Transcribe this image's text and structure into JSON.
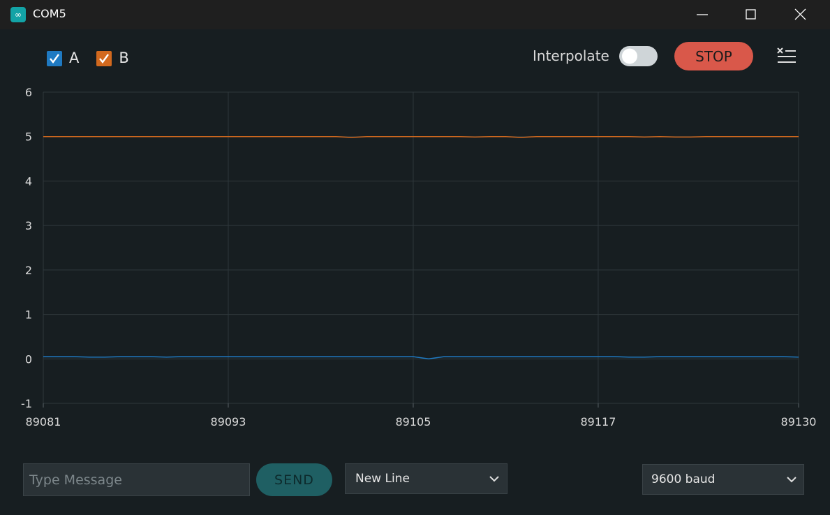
{
  "window": {
    "title": "COM5"
  },
  "toolbar": {
    "interpolate_label": "Interpolate",
    "stop_button": "STOP"
  },
  "chart_data": {
    "type": "line",
    "x": [
      89081,
      89082,
      89083,
      89084,
      89085,
      89086,
      89087,
      89088,
      89089,
      89090,
      89091,
      89092,
      89093,
      89094,
      89095,
      89096,
      89097,
      89098,
      89099,
      89100,
      89101,
      89102,
      89103,
      89104,
      89105,
      89106,
      89107,
      89108,
      89109,
      89110,
      89111,
      89112,
      89113,
      89114,
      89115,
      89116,
      89117,
      89118,
      89119,
      89120,
      89121,
      89122,
      89123,
      89124,
      89125,
      89126,
      89127,
      89128,
      89129,
      89130
    ],
    "series": [
      {
        "name": "A",
        "color": "#1f7ac2",
        "values": [
          0.05,
          0.05,
          0.05,
          0.04,
          0.04,
          0.05,
          0.05,
          0.05,
          0.04,
          0.05,
          0.05,
          0.05,
          0.05,
          0.05,
          0.05,
          0.05,
          0.05,
          0.05,
          0.05,
          0.05,
          0.05,
          0.05,
          0.05,
          0.05,
          0.05,
          0.0,
          0.05,
          0.05,
          0.05,
          0.05,
          0.05,
          0.05,
          0.05,
          0.05,
          0.05,
          0.05,
          0.05,
          0.05,
          0.04,
          0.04,
          0.05,
          0.05,
          0.05,
          0.05,
          0.05,
          0.05,
          0.05,
          0.05,
          0.05,
          0.04
        ]
      },
      {
        "name": "B",
        "color": "#d2691e",
        "values": [
          5.0,
          5.0,
          5.0,
          5.0,
          5.0,
          5.0,
          5.0,
          5.0,
          5.0,
          5.0,
          5.0,
          5.0,
          5.0,
          5.0,
          5.0,
          5.0,
          5.0,
          5.0,
          5.0,
          5.0,
          4.98,
          5.0,
          5.0,
          5.0,
          5.0,
          5.0,
          5.0,
          5.0,
          4.99,
          5.0,
          5.0,
          4.98,
          5.0,
          5.0,
          5.0,
          5.0,
          5.0,
          5.0,
          5.0,
          4.99,
          5.0,
          4.99,
          4.99,
          5.0,
          5.0,
          5.0,
          5.0,
          5.0,
          5.0,
          5.0
        ]
      }
    ],
    "xlim": [
      89081,
      89130
    ],
    "xticks": [
      89081,
      89093,
      89105,
      89117,
      89130
    ],
    "ylim": [
      -1,
      6
    ],
    "yticks": [
      -1,
      0,
      1,
      2,
      3,
      4,
      5,
      6
    ],
    "grid": true
  },
  "footer": {
    "message_placeholder": "Type Message",
    "send_button": "SEND",
    "line_ending": "New Line",
    "baud_rate": "9600 baud"
  }
}
